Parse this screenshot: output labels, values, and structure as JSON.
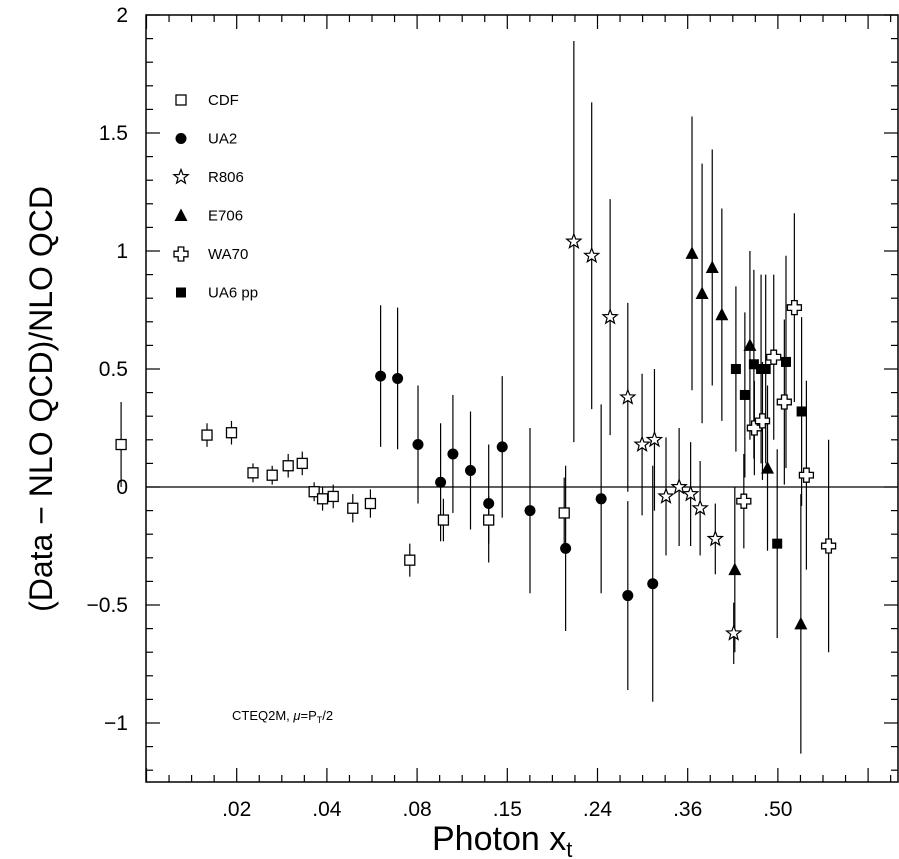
{
  "chart_data": {
    "type": "scatter",
    "xlabel_main": "Photon x",
    "xlabel_sub": "t",
    "ylabel": "(Data − NLO QCD)/NLO QCD",
    "ylim": [
      -1.25,
      2.0
    ],
    "x_ticks": [
      ".02",
      ".04",
      ".08",
      ".15",
      ".24",
      ".36",
      ".50"
    ],
    "y_ticks": [
      {
        "value": 2,
        "label": "2"
      },
      {
        "value": 1.5,
        "label": "1.5"
      },
      {
        "value": 1,
        "label": "1"
      },
      {
        "value": 0.5,
        "label": "0.5"
      },
      {
        "value": 0,
        "label": "0"
      },
      {
        "value": -0.5,
        "label": "−0.5"
      },
      {
        "value": -1,
        "label": "−1"
      }
    ],
    "zero_line": true,
    "legend_position": "top-left",
    "annotation": {
      "prefix": "CTEQ2M, ",
      "mu": "μ",
      "eq": "=P",
      "sub": "T",
      "suffix": "/2"
    },
    "series": [
      {
        "name": "CDF",
        "marker": "open-square",
        "points": [
          {
            "x": 0.0105,
            "y": 0.18,
            "err": 0.18
          },
          {
            "x": 0.017,
            "y": 0.22,
            "err": 0.05
          },
          {
            "x": 0.0195,
            "y": 0.23,
            "err": 0.05
          },
          {
            "x": 0.022,
            "y": 0.06,
            "err": 0.04
          },
          {
            "x": 0.0245,
            "y": 0.05,
            "err": 0.04
          },
          {
            "x": 0.0268,
            "y": 0.09,
            "err": 0.05
          },
          {
            "x": 0.029,
            "y": 0.1,
            "err": 0.05
          },
          {
            "x": 0.031,
            "y": -0.02,
            "err": 0.04
          },
          {
            "x": 0.0325,
            "y": -0.05,
            "err": 0.05
          },
          {
            "x": 0.0345,
            "y": -0.04,
            "err": 0.05
          },
          {
            "x": 0.0385,
            "y": -0.09,
            "err": 0.06
          },
          {
            "x": 0.0425,
            "y": -0.07,
            "err": 0.06
          },
          {
            "x": 0.053,
            "y": -0.31,
            "err": 0.07
          },
          {
            "x": 0.064,
            "y": -0.14,
            "err": 0.09
          },
          {
            "x": 0.0825,
            "y": -0.14,
            "err": 0.1
          },
          {
            "x": 0.126,
            "y": -0.11,
            "err": 0.15
          }
        ]
      },
      {
        "name": "UA2",
        "marker": "filled-circle",
        "points": [
          {
            "x": 0.045,
            "y": 0.47,
            "err": 0.3
          },
          {
            "x": 0.0495,
            "y": 0.46,
            "err": 0.3
          },
          {
            "x": 0.0555,
            "y": 0.18,
            "err": 0.25
          },
          {
            "x": 0.063,
            "y": 0.02,
            "err": 0.25
          },
          {
            "x": 0.0675,
            "y": 0.14,
            "err": 0.25
          },
          {
            "x": 0.0745,
            "y": 0.07,
            "err": 0.25
          },
          {
            "x": 0.0825,
            "y": -0.07,
            "err": 0.25
          },
          {
            "x": 0.089,
            "y": 0.17,
            "err": 0.3
          },
          {
            "x": 0.104,
            "y": -0.1,
            "err": 0.35
          },
          {
            "x": 0.127,
            "y": -0.26,
            "err": 0.35
          },
          {
            "x": 0.155,
            "y": -0.05,
            "err": 0.4
          },
          {
            "x": 0.18,
            "y": -0.46,
            "err": 0.4
          },
          {
            "x": 0.207,
            "y": -0.41,
            "err": 0.5
          }
        ]
      },
      {
        "name": "R806",
        "marker": "open-star",
        "points": [
          {
            "x": 0.133,
            "y": 1.04,
            "err": 0.85
          },
          {
            "x": 0.147,
            "y": 0.98,
            "err": 0.65
          },
          {
            "x": 0.163,
            "y": 0.72,
            "err": 0.5
          },
          {
            "x": 0.18,
            "y": 0.38,
            "err": 0.4
          },
          {
            "x": 0.195,
            "y": 0.18,
            "err": 0.3
          },
          {
            "x": 0.209,
            "y": 0.2,
            "err": 0.3
          },
          {
            "x": 0.223,
            "y": -0.04,
            "err": 0.25
          },
          {
            "x": 0.24,
            "y": 0.0,
            "err": 0.25
          },
          {
            "x": 0.256,
            "y": -0.03,
            "err": 0.22
          },
          {
            "x": 0.27,
            "y": -0.09,
            "err": 0.2
          },
          {
            "x": 0.294,
            "y": -0.22,
            "err": 0.15
          },
          {
            "x": 0.326,
            "y": -0.62,
            "err": 0.13
          }
        ]
      },
      {
        "name": "E706",
        "marker": "filled-triangle",
        "points": [
          {
            "x": 0.258,
            "y": 0.99,
            "err": 0.58
          },
          {
            "x": 0.273,
            "y": 0.82,
            "err": 0.55
          },
          {
            "x": 0.289,
            "y": 0.93,
            "err": 0.5
          },
          {
            "x": 0.305,
            "y": 0.73,
            "err": 0.45
          },
          {
            "x": 0.328,
            "y": -0.35,
            "err": 0.35
          },
          {
            "x": 0.357,
            "y": 0.6,
            "err": 0.4
          },
          {
            "x": 0.394,
            "y": 0.08,
            "err": 0.35
          },
          {
            "x": 0.475,
            "y": -0.58,
            "err": 0.55
          }
        ]
      },
      {
        "name": "WA70",
        "marker": "open-cross",
        "points": [
          {
            "x": 0.345,
            "y": -0.06,
            "err": 0.2
          },
          {
            "x": 0.366,
            "y": 0.25,
            "err": 0.2
          },
          {
            "x": 0.383,
            "y": 0.28,
            "err": 0.25
          },
          {
            "x": 0.408,
            "y": 0.55,
            "err": 0.35
          },
          {
            "x": 0.433,
            "y": 0.36,
            "err": 0.35
          },
          {
            "x": 0.458,
            "y": 0.76,
            "err": 0.4
          },
          {
            "x": 0.49,
            "y": 0.05,
            "err": 0.4
          },
          {
            "x": 0.555,
            "y": -0.25,
            "err": 0.45
          }
        ]
      },
      {
        "name": "UA6 pp",
        "marker": "filled-square",
        "points": [
          {
            "x": 0.33,
            "y": 0.5,
            "err": 0.35
          },
          {
            "x": 0.347,
            "y": 0.39,
            "err": 0.35
          },
          {
            "x": 0.365,
            "y": 0.52,
            "err": 0.4
          },
          {
            "x": 0.38,
            "y": 0.5,
            "err": 0.4
          },
          {
            "x": 0.39,
            "y": 0.5,
            "err": 0.4
          },
          {
            "x": 0.416,
            "y": -0.24,
            "err": 0.4
          },
          {
            "x": 0.437,
            "y": 0.53,
            "err": 0.45
          },
          {
            "x": 0.477,
            "y": 0.32,
            "err": 0.4
          }
        ]
      }
    ]
  }
}
